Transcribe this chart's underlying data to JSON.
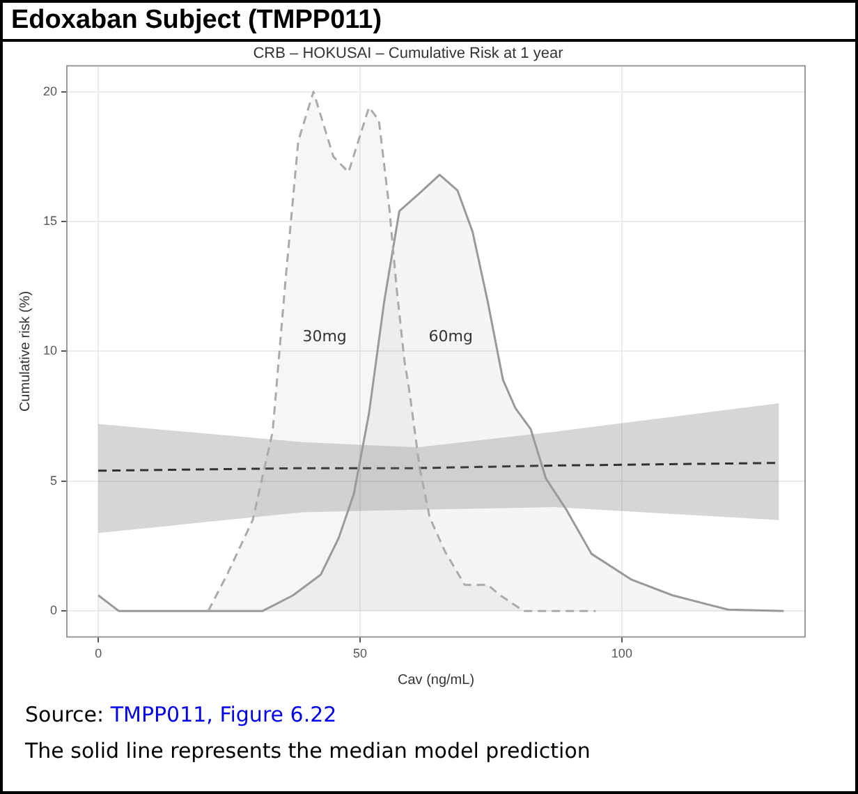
{
  "chart_data": {
    "type": "area",
    "title": "CRB – HOKUSAI – Cumulative Risk at 1 year",
    "xlabel": "Cav (ng/mL)",
    "ylabel": "Cumulative risk (%)",
    "xlim": [
      -6,
      135
    ],
    "ylim": [
      -1,
      21
    ],
    "xticks": [
      0,
      50,
      100
    ],
    "yticks": [
      0,
      5,
      10,
      15,
      20
    ],
    "grid": true,
    "legend": false,
    "marker": "none",
    "series": [
      {
        "name": "30mg",
        "color": "#aaaaaa",
        "line_style": "dashed",
        "x": [
          21,
          24.6,
          29.5,
          33.3,
          35.7,
          38.2,
          41.1,
          44.9,
          47.8,
          51.7,
          53.6,
          55.6,
          57,
          58.5,
          59.4,
          61.4,
          63.3,
          66.2,
          70,
          74.4,
          76.8,
          81.2,
          95
        ],
        "values": [
          0,
          1.4,
          3.5,
          6.9,
          12.6,
          18.1,
          20,
          17.5,
          16.9,
          19.4,
          18.9,
          15.5,
          12.4,
          9.6,
          8.5,
          5.5,
          3.6,
          2.3,
          1,
          1,
          0.6,
          0,
          0
        ]
      },
      {
        "name": "60mg",
        "color": "#999999",
        "line_style": "solid",
        "x": [
          0,
          3.9,
          31.4,
          37.2,
          42.5,
          45.9,
          48.8,
          51.7,
          54.6,
          57.5,
          61.4,
          65.2,
          68.6,
          71.5,
          74.4,
          77.3,
          79.7,
          82.6,
          85.5,
          89.4,
          94.2,
          101.9,
          109.7,
          120.3,
          130.9
        ],
        "values": [
          0.6,
          0,
          0,
          0.6,
          1.4,
          2.8,
          4.5,
          7.6,
          11.9,
          15.4,
          16.1,
          16.8,
          16.2,
          14.6,
          11.9,
          8.9,
          7.8,
          7,
          5.1,
          3.9,
          2.2,
          1.2,
          0.6,
          0.05,
          0
        ]
      },
      {
        "type": "line",
        "color": "#333333",
        "line_style": "dashed",
        "x": [
          0,
          39,
          61,
          87,
          130
        ],
        "values": [
          5.4,
          5.5,
          5.5,
          5.6,
          5.7
        ],
        "lower": [
          3,
          3.8,
          3.9,
          4,
          3.5
        ],
        "upper": [
          7.2,
          6.5,
          6.3,
          6.9,
          8
        ]
      }
    ],
    "annotations": [
      "Edoxaban Subject (TMPP011)",
      "Source: TMPP011, Figure 6.22",
      "The solid line represents the median model prediction"
    ]
  }
}
